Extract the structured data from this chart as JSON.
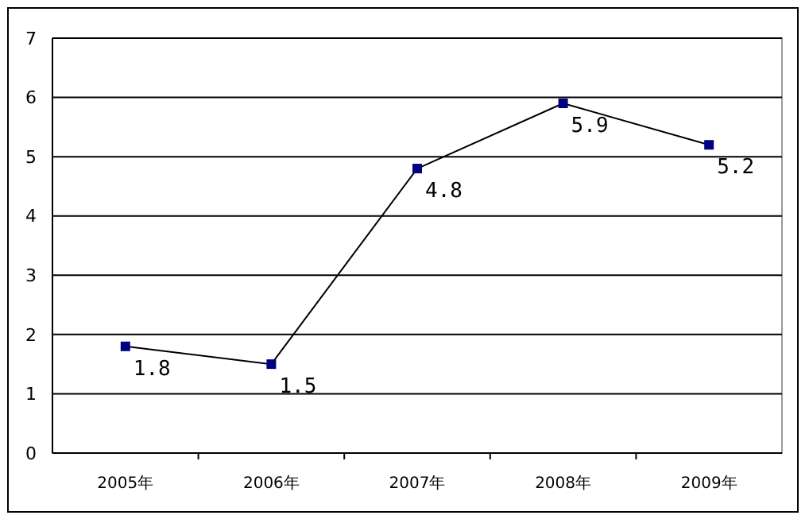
{
  "chart_data": {
    "type": "line",
    "categories": [
      "2005年",
      "2006年",
      "2007年",
      "2008年",
      "2009年"
    ],
    "series": [
      {
        "color": "#000080",
        "values": [
          1.8,
          1.5,
          4.8,
          5.9,
          5.2
        ]
      }
    ],
    "ylim": [
      0,
      7
    ],
    "yticks": [
      0,
      1,
      2,
      3,
      4,
      5,
      6,
      7
    ],
    "grid": "y",
    "marker": "square",
    "line_style": "solid",
    "data_labels": true
  }
}
